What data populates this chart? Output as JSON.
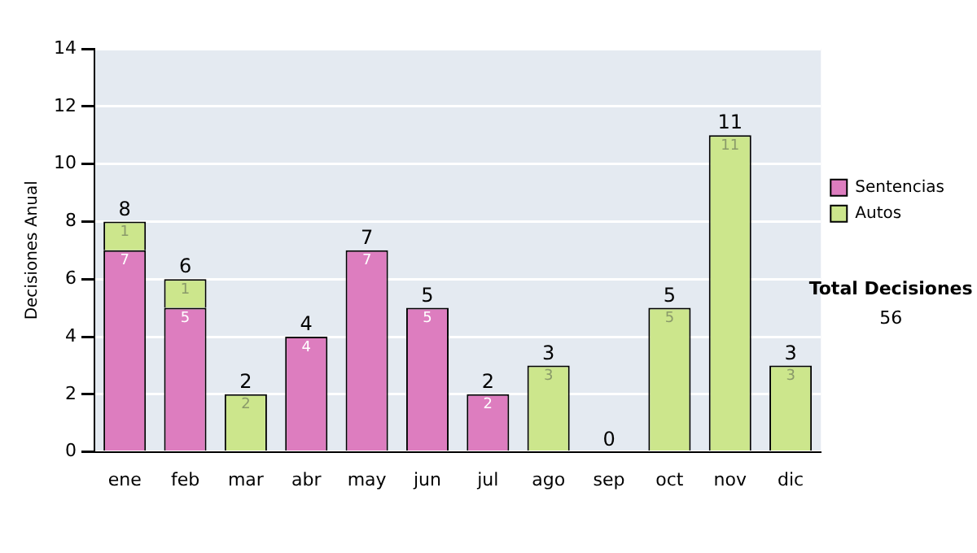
{
  "chart_data": {
    "type": "bar",
    "stacked": true,
    "ylabel": "Decisiones Anual",
    "categories": [
      "ene",
      "feb",
      "mar",
      "abr",
      "may",
      "jun",
      "jul",
      "ago",
      "sep",
      "oct",
      "nov",
      "dic"
    ],
    "series": [
      {
        "name": "Sentencias",
        "color": "#dd7dbf",
        "values": [
          7,
          5,
          0,
          4,
          7,
          5,
          2,
          0,
          0,
          0,
          0,
          0
        ],
        "value_labels": [
          "7",
          "5",
          null,
          "4",
          "7",
          "5",
          "2",
          null,
          null,
          null,
          null,
          null
        ]
      },
      {
        "name": "Autos",
        "color": "#cce68c",
        "values": [
          1,
          1,
          2,
          0,
          0,
          0,
          0,
          3,
          0,
          5,
          11,
          3
        ],
        "value_labels": [
          "1",
          "1",
          "2",
          null,
          null,
          null,
          null,
          "3",
          null,
          "5",
          "11",
          "3"
        ]
      }
    ],
    "totals": [
      "8",
      "6",
      "2",
      "4",
      "7",
      "5",
      "2",
      "3",
      "0",
      "5",
      "11",
      "3"
    ],
    "ylim": [
      0,
      14
    ],
    "yticks": [
      0,
      2,
      4,
      6,
      8,
      10,
      12,
      14
    ],
    "grid": "y",
    "legend": "right",
    "annotations": [
      "Total Decisiones",
      "56"
    ]
  }
}
